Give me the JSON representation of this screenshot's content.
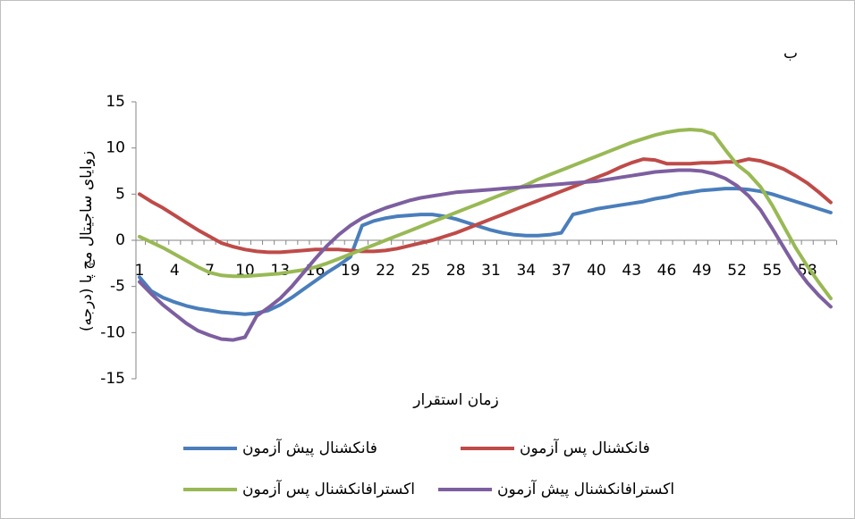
{
  "chart_data": {
    "type": "line",
    "title": "ب",
    "x_label": "زمان استقرار",
    "y_label": "زوایای ساجیتال مچ پا (درجه)",
    "categories": [
      "1",
      null,
      null,
      "4",
      null,
      null,
      "7",
      null,
      null,
      "10",
      null,
      null,
      "13",
      null,
      null,
      "16",
      null,
      null,
      "19",
      null,
      null,
      "22",
      null,
      null,
      "25",
      null,
      null,
      "28",
      null,
      null,
      "31",
      null,
      null,
      "34",
      null,
      null,
      "37",
      null,
      null,
      "40",
      null,
      null,
      "43",
      null,
      null,
      "46",
      null,
      null,
      "49",
      null,
      null,
      "52",
      null,
      null,
      "55",
      null,
      null,
      "58",
      null,
      null
    ],
    "ylim": [
      -15,
      15
    ],
    "yticks": [
      -15,
      -10,
      -5,
      0,
      5,
      10,
      15
    ],
    "grid": false,
    "legend": "bottom",
    "series": [
      {
        "name": "فانکشنال پیش آزمون",
        "color": "#4a7ebb",
        "values": [
          -4,
          -5.5,
          -6.2,
          -6.7,
          -7.1,
          -7.4,
          -7.6,
          -7.8,
          -7.9,
          -8,
          -7.9,
          -7.6,
          -7,
          -6.2,
          -5.3,
          -4.4,
          -3.5,
          -2.7,
          -1.8,
          1.6,
          2.1,
          2.4,
          2.6,
          2.7,
          2.8,
          2.8,
          2.6,
          2.3,
          1.9,
          1.5,
          1.1,
          0.8,
          0.6,
          0.5,
          0.5,
          0.6,
          0.8,
          2.8,
          3.1,
          3.4,
          3.6,
          3.8,
          4,
          4.2,
          4.5,
          4.7,
          5,
          5.2,
          5.4,
          5.5,
          5.6,
          5.6,
          5.5,
          5.3,
          5,
          4.6,
          4.2,
          3.8,
          3.4,
          3
        ]
      },
      {
        "name": "فانکشنال پس آزمون",
        "color": "#be4b48",
        "values": [
          5,
          4.2,
          3.5,
          2.7,
          1.9,
          1.1,
          0.4,
          -0.3,
          -0.7,
          -1,
          -1.2,
          -1.3,
          -1.3,
          -1.2,
          -1.1,
          -1,
          -1,
          -1,
          -1.1,
          -1.2,
          -1.2,
          -1.1,
          -0.9,
          -0.6,
          -0.3,
          0,
          0.4,
          0.8,
          1.3,
          1.8,
          2.3,
          2.8,
          3.3,
          3.8,
          4.3,
          4.8,
          5.3,
          5.8,
          6.3,
          6.8,
          7.3,
          7.9,
          8.4,
          8.8,
          8.7,
          8.3,
          8.3,
          8.3,
          8.4,
          8.4,
          8.5,
          8.5,
          8.8,
          8.6,
          8.2,
          7.7,
          7,
          6.2,
          5.2,
          4.1
        ]
      },
      {
        "name": "اکسترافانکشنال پس آزمون",
        "color": "#98b954",
        "values": [
          0.4,
          -0.2,
          -0.8,
          -1.5,
          -2.2,
          -2.9,
          -3.5,
          -3.8,
          -3.9,
          -3.9,
          -3.8,
          -3.7,
          -3.6,
          -3.4,
          -3.2,
          -2.9,
          -2.5,
          -2,
          -1.5,
          -1,
          -0.5,
          0,
          0.5,
          1,
          1.5,
          2,
          2.5,
          3,
          3.5,
          4,
          4.5,
          5,
          5.5,
          6,
          6.6,
          7.1,
          7.6,
          8.1,
          8.6,
          9.1,
          9.6,
          10.1,
          10.6,
          11,
          11.4,
          11.7,
          11.9,
          12,
          11.9,
          11.5,
          9.8,
          8.2,
          7.2,
          5.8,
          3.8,
          1.5,
          -0.8,
          -2.8,
          -4.6,
          -6.3
        ]
      },
      {
        "name": "اکسترافانکشنال پیش آزمون",
        "color": "#7d5fa0",
        "values": [
          -4.5,
          -5.8,
          -7,
          -8,
          -9,
          -9.8,
          -10.3,
          -10.7,
          -10.8,
          -10.5,
          -8.2,
          -7.3,
          -6.3,
          -5,
          -3.5,
          -2,
          -0.6,
          0.6,
          1.6,
          2.4,
          3,
          3.5,
          3.9,
          4.3,
          4.6,
          4.8,
          5,
          5.2,
          5.3,
          5.4,
          5.5,
          5.6,
          5.7,
          5.8,
          5.9,
          6,
          6.1,
          6.2,
          6.3,
          6.4,
          6.6,
          6.8,
          7,
          7.2,
          7.4,
          7.5,
          7.6,
          7.6,
          7.5,
          7.2,
          6.7,
          5.9,
          4.8,
          3.3,
          1.3,
          -0.8,
          -2.9,
          -4.6,
          -6,
          -7.2
        ]
      }
    ]
  }
}
